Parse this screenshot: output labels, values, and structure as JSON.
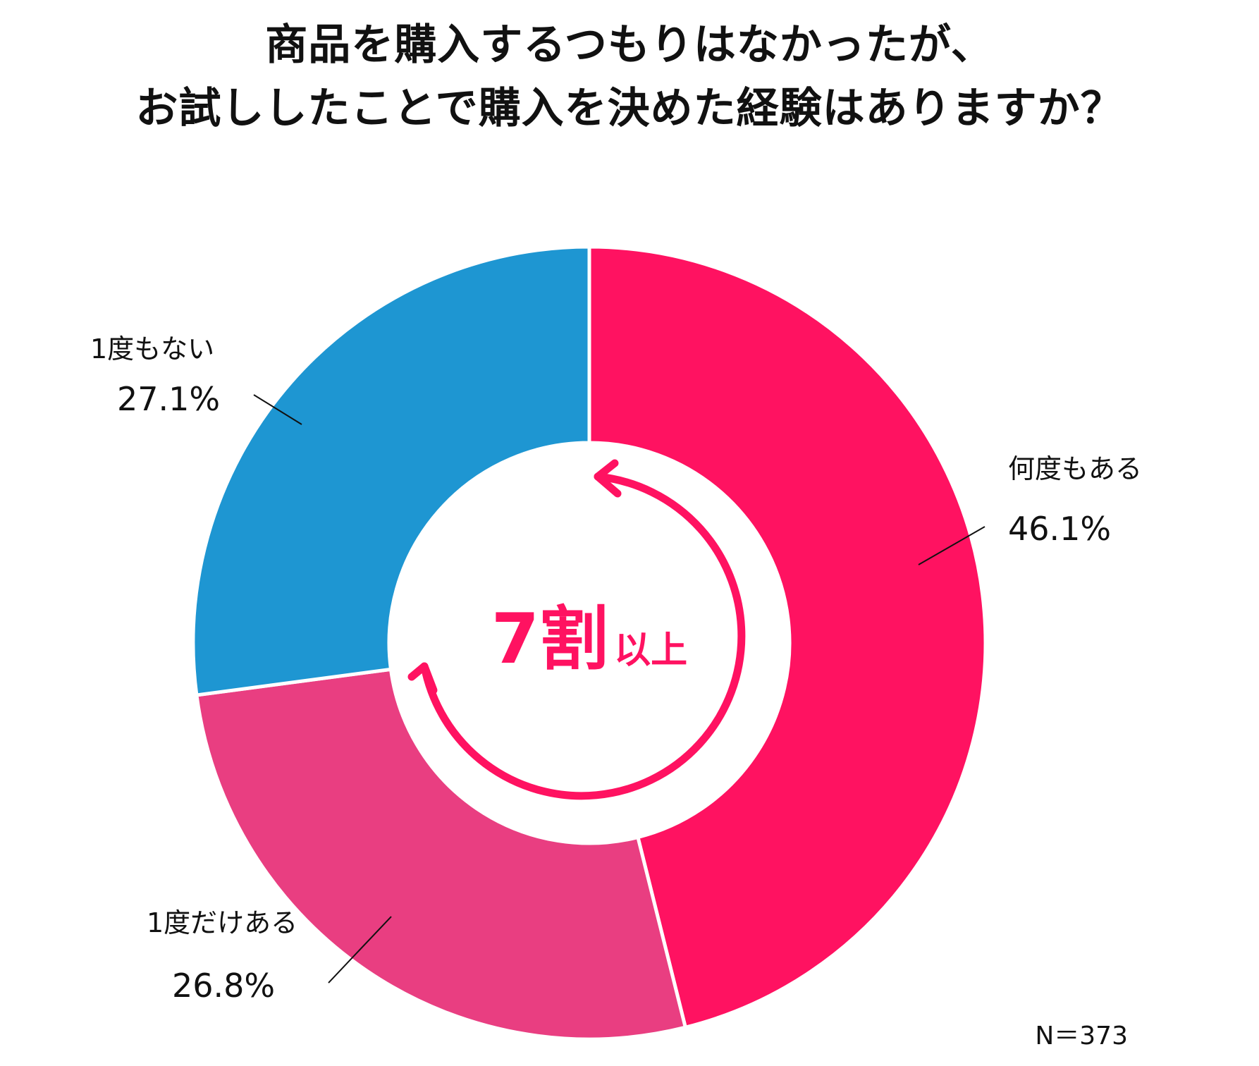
{
  "title": {
    "line1": "商品を購入するつもりはなかったが、",
    "line2": "お試ししたことで購入を決めた経験はありますか？"
  },
  "chart_data": {
    "type": "donut",
    "series": [
      {
        "name": "何度もある",
        "value": 46.1,
        "label": "46.1%",
        "color": "#ff1261"
      },
      {
        "name": "1度だけある",
        "value": 26.8,
        "label": "26.8%",
        "color": "#e93e81"
      },
      {
        "name": "1度もない",
        "value": 27.1,
        "label": "27.1%",
        "color": "#1e96d2"
      }
    ],
    "start": "top, clockwise",
    "center_annotation": {
      "big": "7割",
      "small": "以上"
    },
    "sample_size": "N＝373"
  }
}
